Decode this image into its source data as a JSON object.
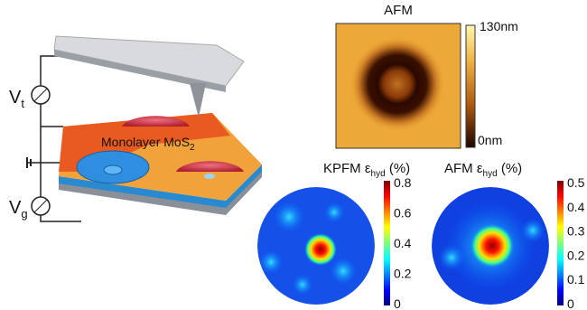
{
  "schematic": {
    "tip_voltage": {
      "text": "V",
      "subscript": "t"
    },
    "gate_voltage": {
      "text": "V",
      "subscript": "g"
    },
    "material": {
      "text": "Monolayer MoS",
      "subscript": "2"
    }
  },
  "afm_panel": {
    "title": "AFM",
    "colorbar_max": "130nm",
    "colorbar_min": "0nm"
  },
  "kpfm_panel": {
    "title": {
      "text": "KPFM ε",
      "subscript": "hyd",
      "suffix": " (%)"
    },
    "colorbar_ticks": [
      0.8,
      0.6,
      0.4,
      0.2,
      0
    ]
  },
  "afm_strain_panel": {
    "title": {
      "text": "AFM ε",
      "subscript": "hyd",
      "suffix": " (%)"
    },
    "colorbar_ticks": [
      0.5,
      0.4,
      0.3,
      0.2,
      0.1,
      0
    ]
  }
}
